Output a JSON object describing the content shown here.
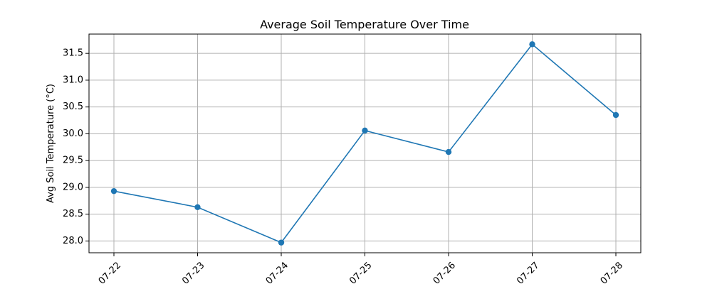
{
  "chart_data": {
    "type": "line",
    "title": "Average Soil Temperature Over Time",
    "xlabel": "",
    "ylabel": "Avg Soil Temperature (°C)",
    "categories": [
      "07-22",
      "07-23",
      "07-24",
      "07-25",
      "07-26",
      "07-27",
      "07-28"
    ],
    "series": [
      {
        "values": [
          28.93,
          28.63,
          27.97,
          30.06,
          29.66,
          31.67,
          30.35
        ],
        "color": "#1f77b4",
        "marker": "circle"
      }
    ],
    "yticks": [
      28.0,
      28.5,
      29.0,
      29.5,
      30.0,
      30.5,
      31.0,
      31.5
    ],
    "ylim": [
      27.78,
      31.86
    ],
    "grid": true,
    "legend": "none"
  }
}
